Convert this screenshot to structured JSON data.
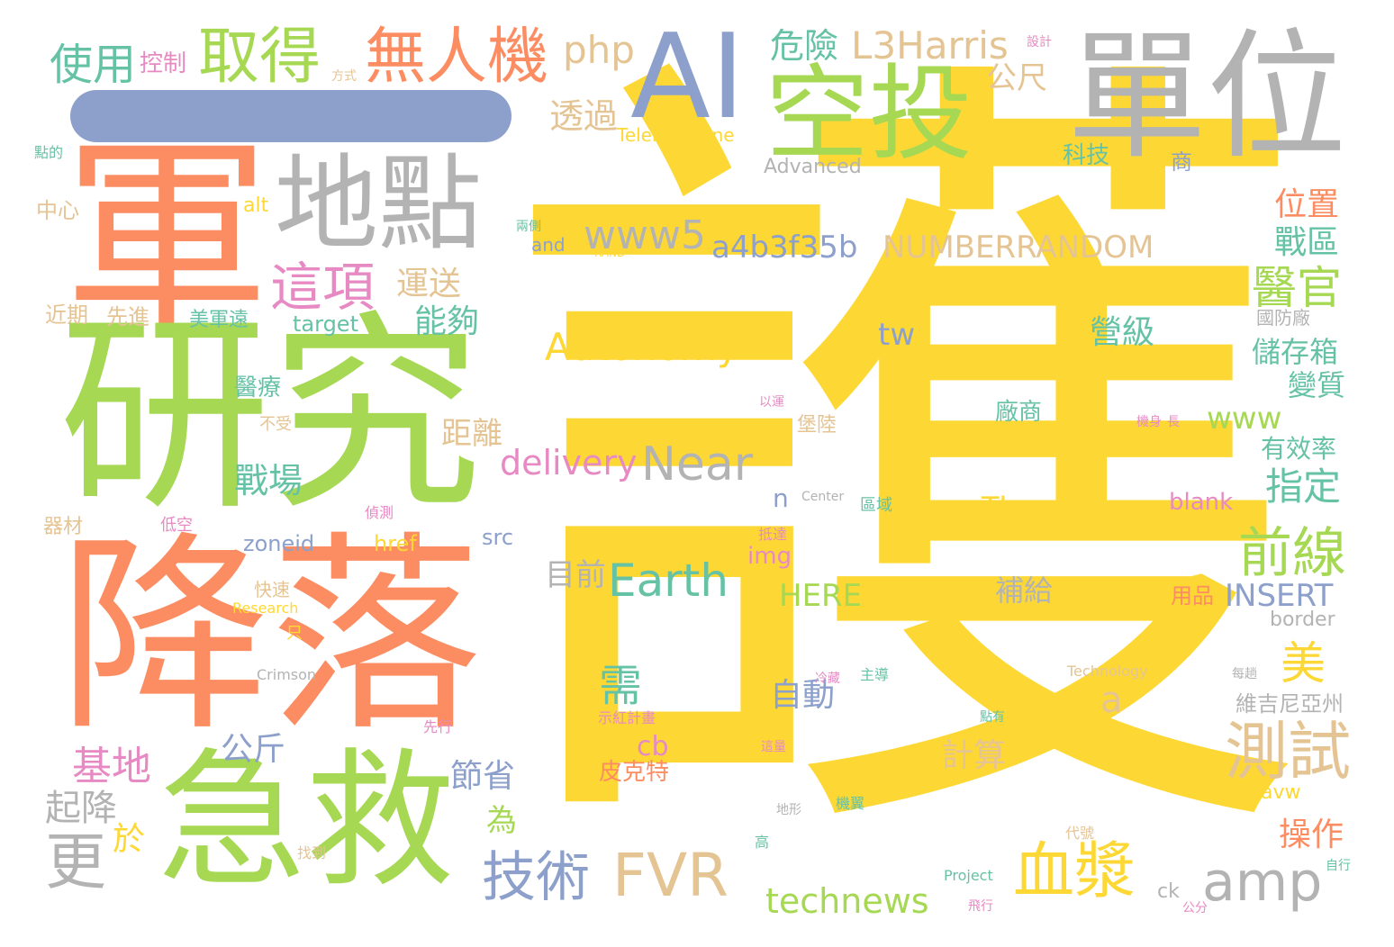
{
  "palette": {
    "yellow": "#fdd835",
    "orange": "#fc8d62",
    "green": "#a6d854",
    "gray": "#b3b3b3",
    "blue": "#8da0cb",
    "tan": "#e5c494",
    "teal": "#66c2a5",
    "pink": "#e78ac3"
  },
  "words": [
    {
      "text": "護",
      "color": "yellow"
    },
    {
      "text": "軍",
      "color": "orange"
    },
    {
      "text": "研究",
      "color": "green"
    },
    {
      "text": "降落",
      "color": "orange"
    },
    {
      "text": "急救",
      "color": "green"
    },
    {
      "text": "單位",
      "color": "gray"
    },
    {
      "text": "AI",
      "color": "blue"
    },
    {
      "text": "地點",
      "color": "gray"
    },
    {
      "text": "空投",
      "color": "green"
    },
    {
      "text": "取得",
      "color": "green"
    },
    {
      "text": "無人機",
      "color": "orange"
    },
    {
      "text": "使用",
      "color": "teal"
    },
    {
      "text": "php",
      "color": "tan"
    },
    {
      "text": "危險",
      "color": "teal"
    },
    {
      "text": "L3Harris",
      "color": "tan"
    },
    {
      "text": "公尺",
      "color": "tan"
    },
    {
      "text": "控制",
      "color": "pink"
    },
    {
      "text": "透過",
      "color": "tan"
    },
    {
      "text": "這項",
      "color": "pink"
    },
    {
      "text": "運送",
      "color": "tan"
    },
    {
      "text": "能夠",
      "color": "teal"
    },
    {
      "text": "www5",
      "color": "gray"
    },
    {
      "text": "a4b3f35b",
      "color": "blue"
    },
    {
      "text": "NUMBERRANDOM",
      "color": "tan"
    },
    {
      "text": "位置",
      "color": "orange"
    },
    {
      "text": "戰區",
      "color": "teal"
    },
    {
      "text": "醫官",
      "color": "green"
    },
    {
      "text": "Autonomy",
      "color": "yellow"
    },
    {
      "text": "tw",
      "color": "blue"
    },
    {
      "text": "營級",
      "color": "teal"
    },
    {
      "text": "儲存箱",
      "color": "teal"
    },
    {
      "text": "變質",
      "color": "teal"
    },
    {
      "text": "www",
      "color": "green"
    },
    {
      "text": "有效率",
      "color": "teal"
    },
    {
      "text": "指定",
      "color": "teal"
    },
    {
      "text": "delivery",
      "color": "pink"
    },
    {
      "text": "Near",
      "color": "gray"
    },
    {
      "text": "戰場",
      "color": "teal"
    },
    {
      "text": "距離",
      "color": "tan"
    },
    {
      "text": "醫療",
      "color": "teal"
    },
    {
      "text": "Earth",
      "color": "teal"
    },
    {
      "text": "前線",
      "color": "green"
    },
    {
      "text": "目前",
      "color": "gray"
    },
    {
      "text": "HERE",
      "color": "green"
    },
    {
      "text": "補給",
      "color": "gray"
    },
    {
      "text": "INSERT",
      "color": "blue"
    },
    {
      "text": "用品",
      "color": "orange"
    },
    {
      "text": "border",
      "color": "gray"
    },
    {
      "text": "The",
      "color": "yellow"
    },
    {
      "text": "blank",
      "color": "pink"
    },
    {
      "text": "廠商",
      "color": "teal"
    },
    {
      "text": "zoneid",
      "color": "blue"
    },
    {
      "text": "href",
      "color": "yellow"
    },
    {
      "text": "src",
      "color": "blue"
    },
    {
      "text": "img",
      "color": "pink"
    },
    {
      "text": "n",
      "color": "blue"
    },
    {
      "text": "Telemedicine",
      "color": "yellow"
    },
    {
      "text": "Advanced",
      "color": "gray"
    },
    {
      "text": "科技",
      "color": "teal"
    },
    {
      "text": "商",
      "color": "blue"
    },
    {
      "text": "and",
      "color": "blue"
    },
    {
      "text": "RAND",
      "color": "yellow"
    },
    {
      "text": "alt",
      "color": "yellow"
    },
    {
      "text": "中心",
      "color": "tan"
    },
    {
      "text": "target",
      "color": "teal"
    },
    {
      "text": "美軍遠",
      "color": "teal"
    },
    {
      "text": "先進",
      "color": "tan"
    },
    {
      "text": "近期",
      "color": "tan"
    },
    {
      "text": "基地",
      "color": "pink"
    },
    {
      "text": "公斤",
      "color": "blue"
    },
    {
      "text": "起降",
      "color": "gray"
    },
    {
      "text": "更",
      "color": "gray"
    },
    {
      "text": "於",
      "color": "yellow"
    },
    {
      "text": "為",
      "color": "green"
    },
    {
      "text": "節省",
      "color": "blue"
    },
    {
      "text": "技術",
      "color": "blue"
    },
    {
      "text": "FVR",
      "color": "tan"
    },
    {
      "text": "technews",
      "color": "green"
    },
    {
      "text": "血漿",
      "color": "yellow"
    },
    {
      "text": "amp",
      "color": "gray"
    },
    {
      "text": "測試",
      "color": "tan"
    },
    {
      "text": "美",
      "color": "yellow"
    },
    {
      "text": "操作",
      "color": "orange"
    },
    {
      "text": "維吉尼亞州",
      "color": "gray"
    },
    {
      "text": "需",
      "color": "teal"
    },
    {
      "text": "自動",
      "color": "blue"
    },
    {
      "text": "a",
      "color": "tan"
    },
    {
      "text": "cb",
      "color": "pink"
    },
    {
      "text": "計算",
      "color": "tan"
    },
    {
      "text": "皮克特",
      "color": "orange"
    },
    {
      "text": "示紅計畫",
      "color": "pink"
    },
    {
      "text": "先行",
      "color": "pink"
    },
    {
      "text": "Research",
      "color": "yellow"
    },
    {
      "text": "Crimson",
      "color": "gray"
    },
    {
      "text": "Technology",
      "color": "tan"
    },
    {
      "text": "Center",
      "color": "gray"
    },
    {
      "text": "Project",
      "color": "teal"
    },
    {
      "text": "avw",
      "color": "yellow"
    },
    {
      "text": "ck",
      "color": "gray"
    },
    {
      "text": "國防廠",
      "color": "gray"
    },
    {
      "text": "堡陸",
      "color": "tan"
    },
    {
      "text": "抵達",
      "color": "pink"
    },
    {
      "text": "區域",
      "color": "teal"
    },
    {
      "text": "偵測",
      "color": "pink"
    },
    {
      "text": "低空",
      "color": "pink"
    },
    {
      "text": "器材",
      "color": "tan"
    },
    {
      "text": "不受",
      "color": "tan"
    },
    {
      "text": "快速",
      "color": "tan"
    },
    {
      "text": "只",
      "color": "yellow"
    },
    {
      "text": "冷藏",
      "color": "pink"
    },
    {
      "text": "主導",
      "color": "teal"
    },
    {
      "text": "點的",
      "color": "teal"
    },
    {
      "text": "方式",
      "color": "tan"
    },
    {
      "text": "設計",
      "color": "pink"
    },
    {
      "text": "兩側",
      "color": "teal"
    },
    {
      "text": "以運",
      "color": "pink"
    },
    {
      "text": "機身",
      "color": "pink"
    },
    {
      "text": "長",
      "color": "pink"
    },
    {
      "text": "每趟",
      "color": "gray"
    },
    {
      "text": "地形",
      "color": "gray"
    },
    {
      "text": "機翼",
      "color": "teal"
    },
    {
      "text": "高",
      "color": "teal"
    },
    {
      "text": "代號",
      "color": "tan"
    },
    {
      "text": "找到",
      "color": "tan"
    },
    {
      "text": "飛行",
      "color": "pink"
    },
    {
      "text": "公分",
      "color": "pink"
    },
    {
      "text": "自行",
      "color": "teal"
    },
    {
      "text": "這量",
      "color": "pink"
    },
    {
      "text": "點有",
      "color": "teal"
    }
  ]
}
